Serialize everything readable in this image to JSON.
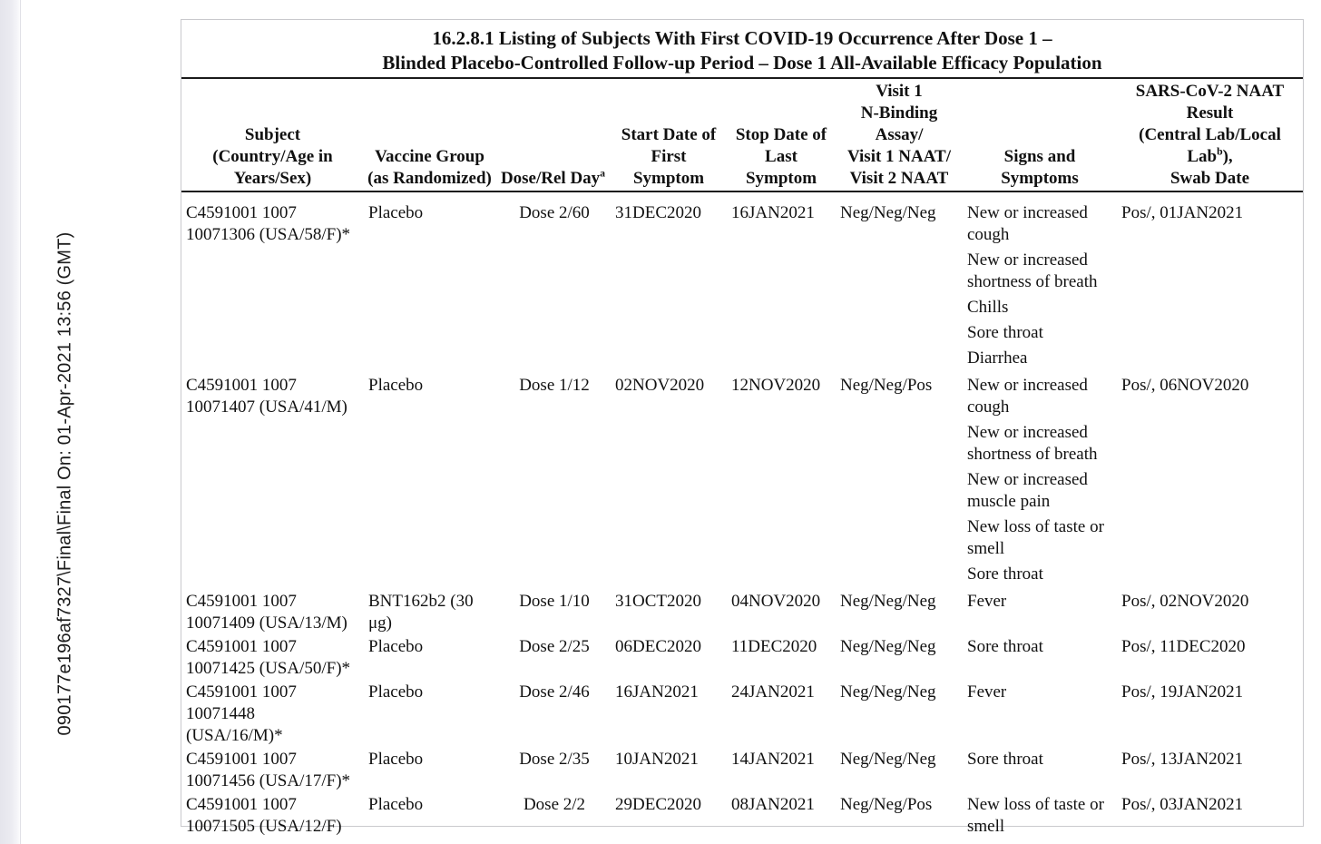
{
  "page": {
    "vertical_document_stamp": "090177e196af7327\\Final\\Final On: 01-Apr-2021 13:56 (GMT)"
  },
  "table": {
    "title_line1": "16.2.8.1 Listing of Subjects With First COVID-19 Occurrence After Dose 1 –",
    "title_line2": "Blinded Placebo-Controlled Follow-up Period – Dose 1 All-Available Efficacy Population",
    "headers": {
      "subject": "Subject\n(Country/Age in\nYears/Sex)",
      "vaccine_group": "Vaccine Group\n(as Randomized)",
      "dose_rel_day": "Dose/Rel Day",
      "dose_rel_day_sup": "a",
      "start_date": "Start Date of\nFirst\nSymptom",
      "stop_date": "Stop Date of\nLast\nSymptom",
      "visit_assay": "Visit 1\nN-Binding\nAssay/\nVisit 1 NAAT/\nVisit 2 NAAT",
      "signs_symptoms": "Signs and\nSymptoms",
      "naat_result_part1": "SARS-CoV-2 NAAT\nResult\n(Central Lab/Local\nLab",
      "naat_result_sup": "b",
      "naat_result_part2": "),\nSwab Date"
    },
    "rows": [
      {
        "subject": "C4591001 1007\n10071306 (USA/58/F)*",
        "vaccine_group": "Placebo",
        "dose_rel_day": "Dose 2/60",
        "start_date": "31DEC2020",
        "stop_date": "16JAN2021",
        "visit_assay": "Neg/Neg/Neg",
        "symptoms": [
          "New or increased\ncough",
          "New or increased\nshortness of breath",
          "Chills",
          "Sore throat",
          "Diarrhea"
        ],
        "naat_result": "Pos/, 01JAN2021"
      },
      {
        "subject": "C4591001 1007\n10071407 (USA/41/M)",
        "vaccine_group": "Placebo",
        "dose_rel_day": "Dose 1/12",
        "start_date": "02NOV2020",
        "stop_date": "12NOV2020",
        "visit_assay": "Neg/Neg/Pos",
        "symptoms": [
          "New or increased\ncough",
          "New or increased\nshortness of breath",
          "New or increased\nmuscle pain",
          "New loss of taste or\nsmell",
          "Sore throat"
        ],
        "naat_result": "Pos/, 06NOV2020"
      },
      {
        "subject": "C4591001 1007\n10071409 (USA/13/M)",
        "vaccine_group": "BNT162b2 (30\nμg)",
        "dose_rel_day": "Dose 1/10",
        "start_date": "31OCT2020",
        "stop_date": "04NOV2020",
        "visit_assay": "Neg/Neg/Neg",
        "symptoms": [
          "Fever"
        ],
        "naat_result": "Pos/, 02NOV2020"
      },
      {
        "subject": "C4591001 1007\n10071425 (USA/50/F)*",
        "vaccine_group": "Placebo",
        "dose_rel_day": "Dose 2/25",
        "start_date": "06DEC2020",
        "stop_date": "11DEC2020",
        "visit_assay": "Neg/Neg/Neg",
        "symptoms": [
          "Sore throat"
        ],
        "naat_result": "Pos/, 11DEC2020"
      },
      {
        "subject": "C4591001 1007\n10071448\n(USA/16/M)*",
        "vaccine_group": "Placebo",
        "dose_rel_day": "Dose 2/46",
        "start_date": "16JAN2021",
        "stop_date": "24JAN2021",
        "visit_assay": "Neg/Neg/Neg",
        "symptoms": [
          "Fever"
        ],
        "naat_result": "Pos/, 19JAN2021"
      },
      {
        "subject": "C4591001 1007\n10071456 (USA/17/F)*",
        "vaccine_group": "Placebo",
        "dose_rel_day": "Dose 2/35",
        "start_date": "10JAN2021",
        "stop_date": "14JAN2021",
        "visit_assay": "Neg/Neg/Neg",
        "symptoms": [
          "Sore throat"
        ],
        "naat_result": "Pos/, 13JAN2021"
      },
      {
        "subject": "C4591001 1007\n10071505 (USA/12/F)",
        "vaccine_group": "Placebo",
        "dose_rel_day": "Dose 2/2",
        "start_date": "29DEC2020",
        "stop_date": "08JAN2021",
        "visit_assay": "Neg/Neg/Pos",
        "symptoms": [
          "New loss of taste or\nsmell"
        ],
        "naat_result": "Pos/, 03JAN2021"
      }
    ]
  }
}
